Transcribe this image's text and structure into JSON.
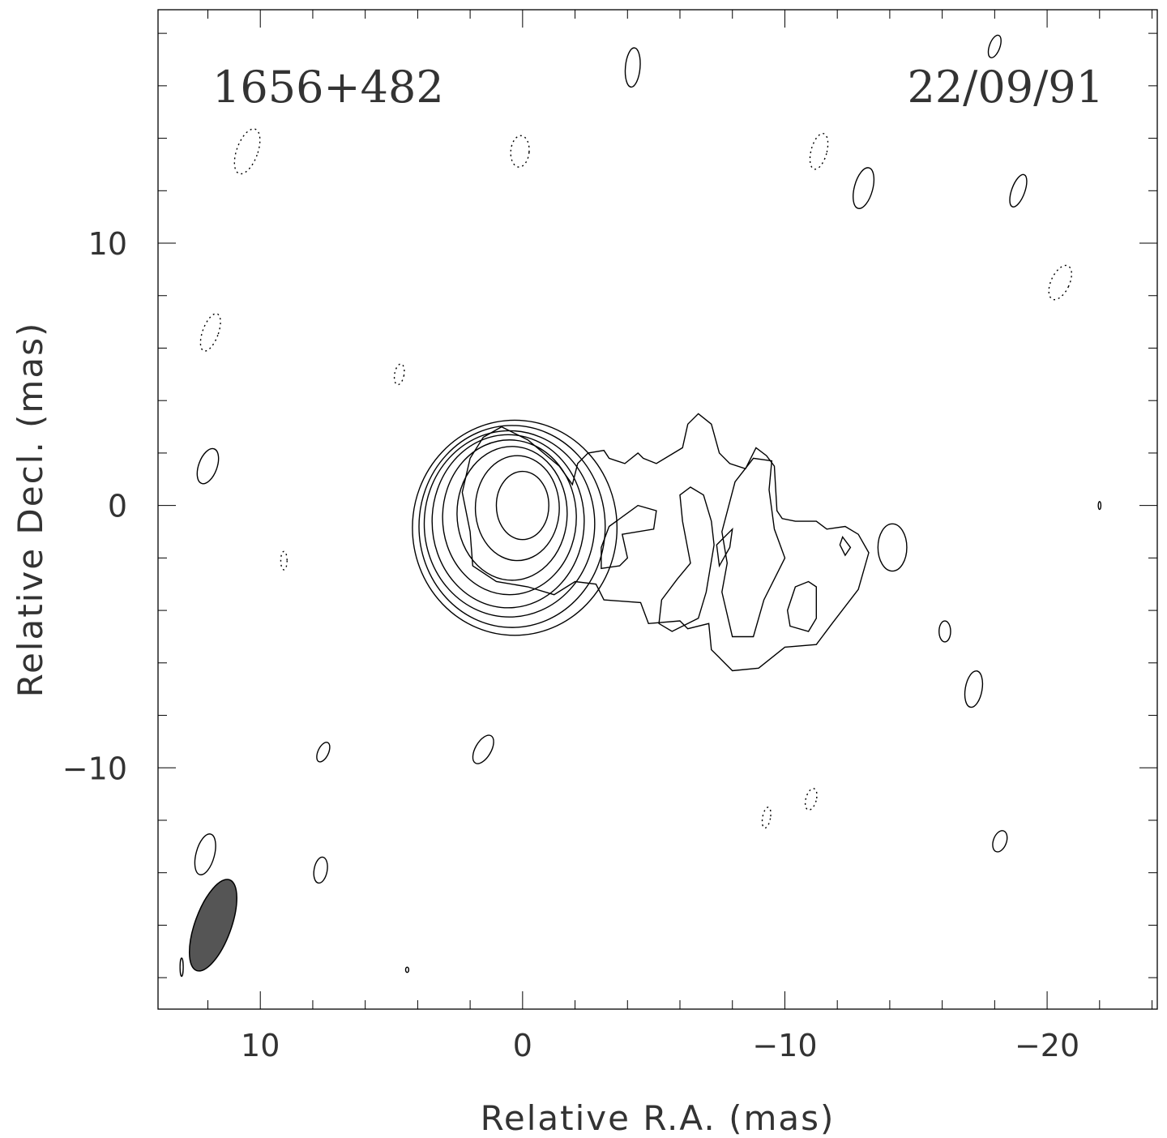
{
  "chart_data": {
    "type": "contour",
    "source_label": "1656+482",
    "date_label": "22/09/91",
    "xlabel": "Relative R.A. (mas)",
    "ylabel": "Relative Decl. (mas)",
    "xlim": [
      13.9,
      -24.2
    ],
    "ylim": [
      -19.2,
      18.9
    ],
    "x_ticks": [
      10,
      0,
      -10,
      -20
    ],
    "x_tick_labels": [
      "10",
      "0",
      "−10",
      "−20"
    ],
    "y_ticks": [
      10,
      0,
      -10
    ],
    "y_tick_labels": [
      "10",
      "0",
      "−10"
    ],
    "x_minor_step": 2,
    "y_minor_step": 2,
    "grid": false,
    "core": {
      "x": 0.0,
      "y": 0.0
    },
    "beam": {
      "x": 11.8,
      "y": -16.0,
      "major_mas": 2.3,
      "minor_mas": 1.15,
      "pa_deg": 20
    },
    "core_contours": [
      {
        "cx": 0.0,
        "cy": 0.0,
        "rx": 1.0,
        "ry": 1.3
      },
      {
        "cx": 0.2,
        "cy": -0.1,
        "rx": 1.6,
        "ry": 2.0
      },
      {
        "cx": 0.4,
        "cy": -0.3,
        "rx": 2.1,
        "ry": 2.55
      },
      {
        "cx": 0.5,
        "cy": -0.45,
        "rx": 2.55,
        "ry": 2.95
      },
      {
        "cx": 0.55,
        "cy": -0.6,
        "rx": 2.9,
        "ry": 3.3
      },
      {
        "cx": 0.5,
        "cy": -0.7,
        "rx": 3.25,
        "ry": 3.55
      },
      {
        "cx": 0.4,
        "cy": -0.8,
        "rx": 3.55,
        "ry": 3.85
      },
      {
        "cx": 0.3,
        "cy": -0.85,
        "rx": 3.9,
        "ry": 4.1
      }
    ],
    "jet_outer": [
      [
        2.0,
        -1.0
      ],
      [
        1.9,
        -2.3
      ],
      [
        1.0,
        -2.9
      ],
      [
        -0.2,
        -3.1
      ],
      [
        -1.2,
        -3.4
      ],
      [
        -2.0,
        -2.9
      ],
      [
        -2.8,
        -3.0
      ],
      [
        -3.1,
        -3.6
      ],
      [
        -4.5,
        -3.7
      ],
      [
        -4.8,
        -4.5
      ],
      [
        -6.0,
        -4.4
      ],
      [
        -6.3,
        -4.7
      ],
      [
        -7.1,
        -4.5
      ],
      [
        -7.2,
        -5.5
      ],
      [
        -7.5,
        -5.8
      ],
      [
        -8.0,
        -6.3
      ],
      [
        -9.0,
        -6.2
      ],
      [
        -10.0,
        -5.4
      ],
      [
        -11.2,
        -5.3
      ],
      [
        -11.8,
        -4.5
      ],
      [
        -12.8,
        -3.2
      ],
      [
        -13.2,
        -1.8
      ],
      [
        -12.8,
        -1.1
      ],
      [
        -12.3,
        -0.8
      ],
      [
        -11.6,
        -0.9
      ],
      [
        -11.2,
        -0.6
      ],
      [
        -10.4,
        -0.6
      ],
      [
        -9.9,
        -0.5
      ],
      [
        -9.7,
        -0.2
      ],
      [
        -9.6,
        1.5
      ],
      [
        -9.3,
        1.9
      ],
      [
        -8.9,
        2.2
      ],
      [
        -8.5,
        1.4
      ],
      [
        -7.9,
        1.6
      ],
      [
        -7.5,
        2.0
      ],
      [
        -7.2,
        3.1
      ],
      [
        -6.7,
        3.5
      ],
      [
        -6.3,
        3.1
      ],
      [
        -6.1,
        2.2
      ],
      [
        -5.1,
        1.6
      ],
      [
        -4.6,
        1.8
      ],
      [
        -4.4,
        2.0
      ],
      [
        -3.9,
        1.6
      ],
      [
        -3.3,
        1.8
      ],
      [
        -3.1,
        2.1
      ],
      [
        -2.5,
        2.0
      ],
      [
        -2.1,
        1.6
      ],
      [
        -1.9,
        0.8
      ],
      [
        -1.4,
        1.5
      ],
      [
        -0.2,
        2.5
      ],
      [
        0.8,
        3.0
      ],
      [
        1.5,
        2.6
      ],
      [
        2.0,
        1.8
      ],
      [
        2.3,
        0.5
      ]
    ],
    "jet_inner": [
      [
        -7.6,
        -1.0
      ],
      [
        -7.8,
        -2.2
      ],
      [
        -7.6,
        -3.3
      ],
      [
        -8.0,
        -5.0
      ],
      [
        -8.8,
        -5.0
      ],
      [
        -9.2,
        -3.6
      ],
      [
        -10.0,
        -2.0
      ],
      [
        -9.6,
        -0.9
      ],
      [
        -9.4,
        0.6
      ],
      [
        -9.5,
        1.7
      ],
      [
        -8.8,
        1.8
      ],
      [
        -8.1,
        0.9
      ]
    ],
    "jet_holes": [
      [
        [
          -3.8,
          -1.1
        ],
        [
          -4.0,
          -2.0
        ],
        [
          -3.7,
          -2.3
        ],
        [
          -3.0,
          -2.4
        ],
        [
          -3.0,
          -1.6
        ],
        [
          -3.3,
          -0.8
        ],
        [
          -4.4,
          0.0
        ],
        [
          -5.1,
          -0.2
        ],
        [
          -5.0,
          -0.9
        ]
      ],
      [
        [
          -6.1,
          -0.6
        ],
        [
          -6.4,
          -2.2
        ],
        [
          -5.9,
          -2.8
        ],
        [
          -5.3,
          -3.6
        ],
        [
          -5.2,
          -4.5
        ],
        [
          -5.7,
          -4.8
        ],
        [
          -6.7,
          -4.3
        ],
        [
          -7.0,
          -3.3
        ],
        [
          -7.3,
          -1.5
        ],
        [
          -7.2,
          -0.6
        ],
        [
          -6.9,
          0.4
        ],
        [
          -6.4,
          0.7
        ],
        [
          -6.0,
          0.4
        ]
      ],
      [
        [
          -10.4,
          -3.1
        ],
        [
          -10.1,
          -4.0
        ],
        [
          -10.2,
          -4.6
        ],
        [
          -10.9,
          -4.8
        ],
        [
          -11.2,
          -4.3
        ],
        [
          -11.2,
          -3.1
        ],
        [
          -10.9,
          -2.9
        ]
      ],
      [
        [
          -7.4,
          -1.5
        ],
        [
          -7.5,
          -2.3
        ],
        [
          -7.9,
          -1.6
        ],
        [
          -8.0,
          -0.9
        ]
      ],
      [
        [
          -12.1,
          -1.5
        ],
        [
          -12.3,
          -1.9
        ],
        [
          -12.5,
          -1.6
        ],
        [
          -12.2,
          -1.2
        ]
      ]
    ],
    "islands_positive": [
      {
        "cx": 12.0,
        "cy": 1.5,
        "rx": 0.35,
        "ry": 0.7,
        "rot": 20
      },
      {
        "cx": 12.1,
        "cy": -13.3,
        "rx": 0.35,
        "ry": 0.8,
        "rot": 15
      },
      {
        "cx": 7.7,
        "cy": -13.9,
        "rx": 0.25,
        "ry": 0.5,
        "rot": 10
      },
      {
        "cx": 7.6,
        "cy": -9.4,
        "rx": 0.2,
        "ry": 0.4,
        "rot": 25
      },
      {
        "cx": 1.5,
        "cy": -9.3,
        "rx": 0.3,
        "ry": 0.6,
        "rot": 30
      },
      {
        "cx": -4.2,
        "cy": 16.7,
        "rx": 0.28,
        "ry": 0.75,
        "rot": 5
      },
      {
        "cx": -13.0,
        "cy": 12.1,
        "rx": 0.35,
        "ry": 0.8,
        "rot": 15
      },
      {
        "cx": -18.0,
        "cy": 17.5,
        "rx": 0.2,
        "ry": 0.45,
        "rot": 20
      },
      {
        "cx": -18.9,
        "cy": 12.0,
        "rx": 0.25,
        "ry": 0.65,
        "rot": 20
      },
      {
        "cx": -14.1,
        "cy": -1.6,
        "rx": 0.55,
        "ry": 0.9,
        "rot": 0
      },
      {
        "cx": -16.1,
        "cy": -4.8,
        "rx": 0.22,
        "ry": 0.4,
        "rot": 0
      },
      {
        "cx": -17.2,
        "cy": -7.0,
        "rx": 0.32,
        "ry": 0.7,
        "rot": 10
      },
      {
        "cx": -18.2,
        "cy": -12.8,
        "rx": 0.25,
        "ry": 0.42,
        "rot": 20
      },
      {
        "cx": 13.0,
        "cy": -17.6,
        "rx": 0.06,
        "ry": 0.35,
        "rot": 0
      },
      {
        "cx": 4.4,
        "cy": -17.7,
        "rx": 0.06,
        "ry": 0.1,
        "rot": 0
      },
      {
        "cx": -22.0,
        "cy": 0.0,
        "rx": 0.05,
        "ry": 0.15,
        "rot": 0
      }
    ],
    "islands_negative": [
      {
        "cx": 10.5,
        "cy": 13.5,
        "rx": 0.4,
        "ry": 0.9,
        "rot": 20
      },
      {
        "cx": 11.9,
        "cy": 6.6,
        "rx": 0.3,
        "ry": 0.75,
        "rot": 20
      },
      {
        "cx": 4.7,
        "cy": 5.0,
        "rx": 0.18,
        "ry": 0.4,
        "rot": 10
      },
      {
        "cx": 9.1,
        "cy": -2.1,
        "rx": 0.12,
        "ry": 0.35,
        "rot": 0
      },
      {
        "cx": 0.1,
        "cy": 13.5,
        "rx": 0.35,
        "ry": 0.6,
        "rot": 5
      },
      {
        "cx": -11.3,
        "cy": 13.5,
        "rx": 0.3,
        "ry": 0.7,
        "rot": 15
      },
      {
        "cx": -20.5,
        "cy": 8.5,
        "rx": 0.35,
        "ry": 0.7,
        "rot": 25
      },
      {
        "cx": -11.0,
        "cy": -11.2,
        "rx": 0.2,
        "ry": 0.42,
        "rot": 15
      },
      {
        "cx": -9.3,
        "cy": -11.9,
        "rx": 0.15,
        "ry": 0.4,
        "rot": 10
      }
    ]
  }
}
